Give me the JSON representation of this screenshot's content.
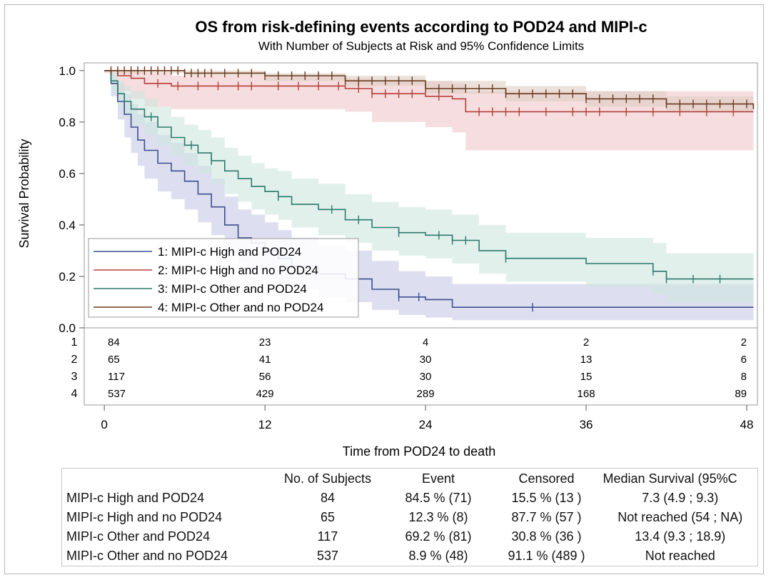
{
  "chart_data": {
    "type": "line",
    "title": "OS from risk-defining events according to POD24 and MIPI-c",
    "subtitle": "With Number of Subjects at Risk and 95% Confidence Limits",
    "xlabel": "Time from POD24 to death",
    "ylabel": "Survival Probability",
    "xlim": [
      -1.5,
      48.8
    ],
    "ylim": [
      0,
      1.03
    ],
    "xticks": [
      "0",
      "12",
      "24",
      "36",
      "48"
    ],
    "xtick_values": [
      0,
      12,
      24,
      36,
      48
    ],
    "yticks": [
      "0.0",
      "0.2",
      "0.4",
      "0.6",
      "0.8",
      "1.0"
    ],
    "ytick_values": [
      0,
      0.2,
      0.4,
      0.6,
      0.8,
      1.0
    ],
    "legend_position": "bottom-left",
    "series": [
      {
        "name": "1: MIPI-c High and POD24",
        "color": "#3d4e8f",
        "band_color": "#c6c9e6",
        "times": [
          0,
          0.5,
          1,
          1.5,
          2,
          2.5,
          3,
          4,
          5,
          6,
          7,
          8,
          9,
          10,
          11,
          12,
          13,
          14,
          16,
          18,
          20,
          22,
          24,
          26,
          30,
          36,
          42,
          48.5
        ],
        "survival": [
          1.0,
          0.95,
          0.88,
          0.83,
          0.78,
          0.73,
          0.69,
          0.64,
          0.61,
          0.57,
          0.52,
          0.47,
          0.4,
          0.35,
          0.33,
          0.3,
          0.27,
          0.24,
          0.21,
          0.19,
          0.15,
          0.12,
          0.11,
          0.08,
          0.08,
          0.08,
          0.08,
          0.08
        ],
        "lower": [
          1.0,
          0.9,
          0.81,
          0.74,
          0.68,
          0.63,
          0.58,
          0.53,
          0.5,
          0.46,
          0.41,
          0.36,
          0.29,
          0.25,
          0.22,
          0.2,
          0.17,
          0.15,
          0.12,
          0.1,
          0.07,
          0.05,
          0.04,
          0.03,
          0.03,
          0.03,
          0.03,
          0.03
        ],
        "upper": [
          1.0,
          0.99,
          0.95,
          0.91,
          0.87,
          0.83,
          0.8,
          0.75,
          0.72,
          0.68,
          0.63,
          0.58,
          0.51,
          0.46,
          0.44,
          0.41,
          0.38,
          0.35,
          0.32,
          0.3,
          0.26,
          0.22,
          0.2,
          0.17,
          0.17,
          0.17,
          0.17,
          0.17
        ],
        "censored": [
          22,
          23.5,
          32
        ]
      },
      {
        "name": "2: MIPI-c High and no POD24",
        "color": "#b5403a",
        "band_color": "#f0c7c9",
        "times": [
          0,
          1,
          2,
          3,
          5,
          8,
          12,
          18,
          20,
          24,
          26,
          27,
          30,
          36,
          42,
          48.5
        ],
        "survival": [
          1.0,
          0.98,
          0.97,
          0.95,
          0.94,
          0.94,
          0.94,
          0.93,
          0.91,
          0.9,
          0.89,
          0.84,
          0.84,
          0.84,
          0.84,
          0.84
        ],
        "lower": [
          1.0,
          0.92,
          0.89,
          0.86,
          0.85,
          0.85,
          0.85,
          0.84,
          0.8,
          0.78,
          0.76,
          0.69,
          0.69,
          0.69,
          0.69,
          0.69
        ],
        "upper": [
          1.0,
          1.0,
          1.0,
          0.99,
          0.98,
          0.98,
          0.98,
          0.97,
          0.96,
          0.96,
          0.95,
          0.92,
          0.92,
          0.92,
          0.92,
          0.92
        ],
        "censored": [
          4,
          5.5,
          7,
          8.5,
          10,
          11,
          13,
          14.5,
          16,
          17.5,
          19,
          20,
          21,
          22,
          23,
          25,
          28,
          29,
          30,
          31,
          33,
          35,
          36,
          37,
          39,
          41,
          43,
          45,
          47
        ]
      },
      {
        "name": "3: MIPI-c Other and POD24",
        "color": "#2a7a6c",
        "band_color": "#cfe6df",
        "times": [
          0,
          0.5,
          1,
          1.5,
          2,
          3,
          4,
          5,
          6,
          7,
          8,
          9,
          10,
          11,
          12,
          13,
          14,
          16,
          18,
          20,
          22,
          24,
          26,
          28,
          30,
          36,
          41,
          42,
          48.5
        ],
        "survival": [
          1.0,
          0.96,
          0.91,
          0.88,
          0.85,
          0.82,
          0.78,
          0.74,
          0.71,
          0.68,
          0.65,
          0.61,
          0.58,
          0.55,
          0.53,
          0.51,
          0.48,
          0.46,
          0.42,
          0.39,
          0.37,
          0.36,
          0.34,
          0.3,
          0.27,
          0.25,
          0.22,
          0.19,
          0.19
        ],
        "lower": [
          1.0,
          0.92,
          0.86,
          0.82,
          0.79,
          0.75,
          0.71,
          0.67,
          0.63,
          0.6,
          0.56,
          0.52,
          0.49,
          0.46,
          0.44,
          0.42,
          0.39,
          0.36,
          0.33,
          0.3,
          0.28,
          0.27,
          0.25,
          0.21,
          0.18,
          0.16,
          0.13,
          0.1,
          0.1
        ],
        "upper": [
          1.0,
          0.99,
          0.96,
          0.94,
          0.92,
          0.89,
          0.86,
          0.82,
          0.79,
          0.77,
          0.74,
          0.7,
          0.67,
          0.64,
          0.62,
          0.61,
          0.58,
          0.56,
          0.52,
          0.49,
          0.47,
          0.46,
          0.44,
          0.4,
          0.37,
          0.35,
          0.33,
          0.29,
          0.29
        ],
        "censored": [
          3.5,
          6.5,
          8,
          13,
          17,
          19,
          22,
          25,
          26,
          27,
          30,
          41,
          42,
          44,
          46
        ]
      },
      {
        "name": "4: MIPI-c Other and no POD24",
        "color": "#6b3a1e",
        "band_color": "#e0cfc3",
        "times": [
          0,
          6,
          12,
          18,
          24,
          30,
          36,
          42,
          48.5
        ],
        "survival": [
          1.0,
          0.99,
          0.98,
          0.96,
          0.93,
          0.91,
          0.89,
          0.87,
          0.85
        ],
        "lower": [
          0.99,
          0.98,
          0.96,
          0.94,
          0.91,
          0.88,
          0.86,
          0.84,
          0.82
        ],
        "upper": [
          1.0,
          1.0,
          0.99,
          0.98,
          0.96,
          0.94,
          0.92,
          0.9,
          0.88
        ],
        "censored": [
          0.5,
          1,
          1.5,
          2,
          2.5,
          3,
          3.5,
          4,
          4.5,
          5,
          5.5,
          6,
          6.5,
          7,
          7.5,
          8,
          9,
          10,
          11,
          12,
          13,
          14,
          15,
          16,
          17,
          18,
          19,
          20,
          21,
          22,
          23,
          24,
          25,
          26,
          27,
          28,
          29,
          30,
          31,
          32,
          33,
          34,
          35,
          36,
          37,
          38,
          39,
          40,
          41,
          42,
          43,
          44,
          45,
          46,
          47,
          48
        ]
      }
    ],
    "at_risk": {
      "times": [
        0,
        12,
        24,
        36,
        48
      ],
      "rows": [
        {
          "id": "1",
          "counts": [
            "84",
            "23",
            "4",
            "2",
            "2"
          ]
        },
        {
          "id": "2",
          "counts": [
            "65",
            "41",
            "30",
            "13",
            "6"
          ]
        },
        {
          "id": "3",
          "counts": [
            "117",
            "56",
            "30",
            "15",
            "8"
          ]
        },
        {
          "id": "4",
          "counts": [
            "537",
            "429",
            "289",
            "168",
            "89"
          ]
        }
      ]
    }
  },
  "summary": {
    "headers": [
      "",
      "No. of Subjects",
      "Event",
      "Censored",
      "Median Survival (95%C"
    ],
    "rows": [
      [
        "MIPI-c High and POD24",
        "84",
        "84.5 % (71)",
        "15.5 % (13 )",
        "7.3 (4.9 ; 9.3)"
      ],
      [
        "MIPI-c High and no POD24",
        "65",
        "12.3 % (8)",
        "87.7 % (57 )",
        "Not reached (54 ; NA)"
      ],
      [
        "MIPI-c Other and POD24",
        "117",
        "69.2 % (81)",
        "30.8 % (36 )",
        "13.4 (9.3 ; 18.9)"
      ],
      [
        "MIPI-c Other and no POD24",
        "537",
        "8.9 % (48)",
        "91.1 % (489 )",
        "Not reached"
      ]
    ]
  }
}
